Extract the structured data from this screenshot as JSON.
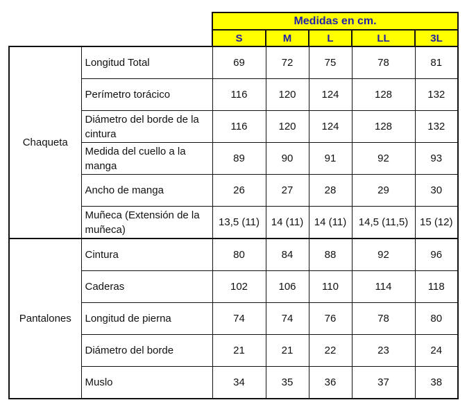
{
  "header": {
    "title": "Medidas en cm.",
    "sizes": [
      "S",
      "M",
      "L",
      "LL",
      "3L"
    ],
    "colors": {
      "header_bg": "#ffff00",
      "header_text": "#1f1fa8"
    }
  },
  "groups": [
    {
      "name": "Chaqueta",
      "rows": [
        {
          "label": "Longitud Total",
          "values": [
            "69",
            "72",
            "75",
            "78",
            "81"
          ]
        },
        {
          "label": "Perímetro torácico",
          "values": [
            "116",
            "120",
            "124",
            "128",
            "132"
          ]
        },
        {
          "label": "Diámetro del borde de la cintura",
          "values": [
            "116",
            "120",
            "124",
            "128",
            "132"
          ]
        },
        {
          "label": "Medida del cuello a la manga",
          "values": [
            "89",
            "90",
            "91",
            "92",
            "93"
          ]
        },
        {
          "label": "Ancho de manga",
          "values": [
            "26",
            "27",
            "28",
            "29",
            "30"
          ]
        },
        {
          "label": "Muñeca (Extensión de la muñeca)",
          "values": [
            "13,5 (11)",
            "14 (11)",
            "14 (11)",
            "14,5 (11,5)",
            "15 (12)"
          ]
        }
      ]
    },
    {
      "name": "Pantalones",
      "rows": [
        {
          "label": "Cintura",
          "values": [
            "80",
            "84",
            "88",
            "92",
            "96"
          ]
        },
        {
          "label": "Caderas",
          "values": [
            "102",
            "106",
            "110",
            "114",
            "118"
          ]
        },
        {
          "label": "Longitud de pierna",
          "values": [
            "74",
            "74",
            "76",
            "78",
            "80"
          ]
        },
        {
          "label": "Diámetro del borde",
          "values": [
            "21",
            "21",
            "22",
            "23",
            "24"
          ]
        },
        {
          "label": "Muslo",
          "values": [
            "34",
            "35",
            "36",
            "37",
            "38"
          ]
        }
      ]
    }
  ]
}
